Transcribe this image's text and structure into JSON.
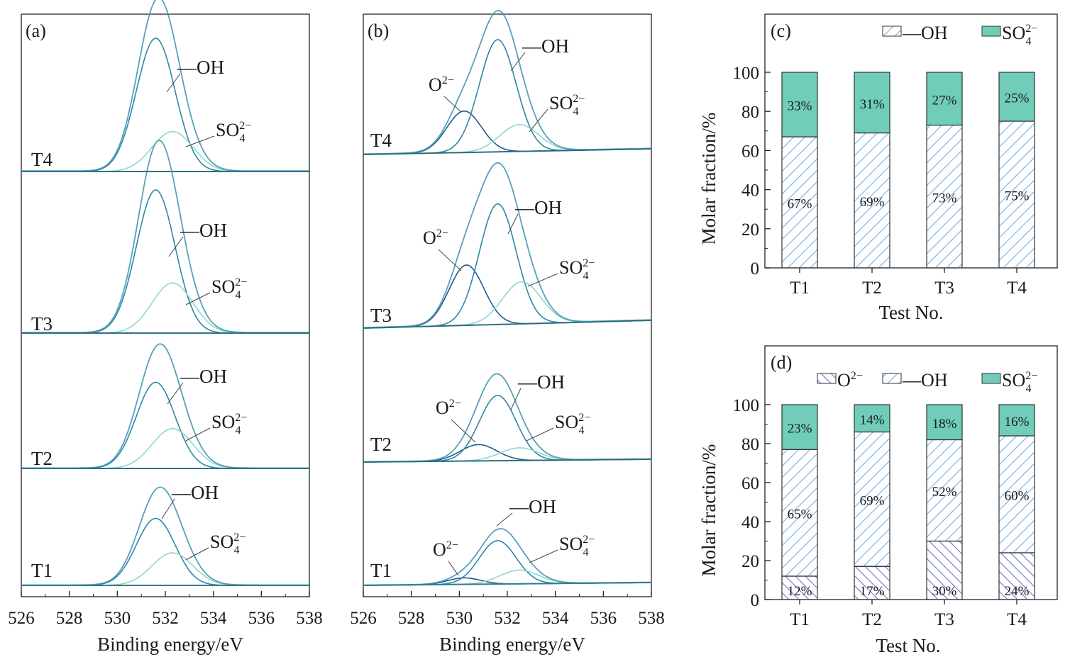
{
  "colors": {
    "envelope": "#3a8fb0",
    "oh": "#2e86a8",
    "so4": "#8fd8c8",
    "o2": "#1f5a8c",
    "baseline": "#2f7d8f",
    "so4_fill": "#6fcdb9",
    "hatch": "#7fb7e6",
    "hatch_o2": "#7a82c9"
  },
  "panels": {
    "a": {
      "tag": "(a)",
      "xlabel": "Binding energy/eV",
      "xticks": [
        "526",
        "528",
        "530",
        "532",
        "534",
        "536",
        "538"
      ],
      "samples": [
        {
          "name": "T4",
          "oh_label": "—OH",
          "so4_label": "SO",
          "so4_sup": "2−",
          "so4_sub": "4"
        },
        {
          "name": "T3",
          "oh_label": "—OH",
          "so4_label": "SO",
          "so4_sup": "2−",
          "so4_sub": "4"
        },
        {
          "name": "T2",
          "oh_label": "—OH",
          "so4_label": "SO",
          "so4_sup": "2−",
          "so4_sub": "4"
        },
        {
          "name": "T1",
          "oh_label": "—OH",
          "so4_label": "SO",
          "so4_sup": "2−",
          "so4_sub": "4"
        }
      ]
    },
    "b": {
      "tag": "(b)",
      "xlabel": "Binding energy/eV",
      "xticks": [
        "526",
        "528",
        "530",
        "532",
        "534",
        "536",
        "538"
      ],
      "samples": [
        {
          "name": "T4",
          "oh_label": "—OH",
          "so4_label": "SO",
          "so4_sup": "2−",
          "so4_sub": "4",
          "o2_label": "O",
          "o2_sup": "2−"
        },
        {
          "name": "T3",
          "oh_label": "—OH",
          "so4_label": "SO",
          "so4_sup": "2−",
          "so4_sub": "4",
          "o2_label": "O",
          "o2_sup": "2−"
        },
        {
          "name": "T2",
          "oh_label": "—OH",
          "so4_label": "SO",
          "so4_sup": "2−",
          "so4_sub": "4",
          "o2_label": "O",
          "o2_sup": "2−"
        },
        {
          "name": "T1",
          "oh_label": "—OH",
          "so4_label": "SO",
          "so4_sup": "2−",
          "so4_sub": "4",
          "o2_label": "O",
          "o2_sup": "2−"
        }
      ]
    },
    "c": {
      "tag": "(c)",
      "xlabel": "Test No.",
      "ylabel": "Molar fraction/%",
      "yticks": [
        "0",
        "20",
        "40",
        "60",
        "80",
        "100"
      ],
      "legend": [
        {
          "key": "oh",
          "label": "—OH"
        },
        {
          "key": "so4",
          "label": "SO",
          "sup": "2−",
          "sub": "4"
        }
      ]
    },
    "d": {
      "tag": "(d)",
      "xlabel": "Test No.",
      "ylabel": "Molar fraction/%",
      "yticks": [
        "0",
        "20",
        "40",
        "60",
        "80",
        "100"
      ],
      "legend": [
        {
          "key": "o2",
          "label": "O",
          "sup": "2−"
        },
        {
          "key": "oh",
          "label": "—OH"
        },
        {
          "key": "so4",
          "label": "SO",
          "sup": "2−",
          "sub": "4"
        }
      ]
    }
  },
  "chart_data": [
    {
      "type": "line",
      "panel": "a",
      "xlabel": "Binding energy/eV",
      "xlim": [
        526,
        538
      ],
      "series": [
        {
          "name": "T4",
          "peaks": {
            "oh": {
              "center": 531.6,
              "fwhm": 1.9,
              "height": 1.0
            },
            "so4": {
              "center": 532.3,
              "fwhm": 2.0,
              "height": 0.3
            }
          }
        },
        {
          "name": "T3",
          "peaks": {
            "oh": {
              "center": 531.6,
              "fwhm": 1.9,
              "height": 1.0
            },
            "so4": {
              "center": 532.3,
              "fwhm": 2.0,
              "height": 0.35
            }
          }
        },
        {
          "name": "T2",
          "peaks": {
            "oh": {
              "center": 531.6,
              "fwhm": 1.9,
              "height": 0.8
            },
            "so4": {
              "center": 532.3,
              "fwhm": 2.0,
              "height": 0.37
            }
          }
        },
        {
          "name": "T1",
          "peaks": {
            "oh": {
              "center": 531.6,
              "fwhm": 1.9,
              "height": 0.7
            },
            "so4": {
              "center": 532.3,
              "fwhm": 2.0,
              "height": 0.34
            }
          }
        }
      ]
    },
    {
      "type": "line",
      "panel": "b",
      "xlabel": "Binding energy/eV",
      "xlim": [
        526,
        538
      ],
      "series": [
        {
          "name": "T4",
          "peaks": {
            "o2": {
              "center": 530.2,
              "fwhm": 1.7,
              "height": 0.34
            },
            "oh": {
              "center": 531.6,
              "fwhm": 1.8,
              "height": 0.92
            },
            "so4": {
              "center": 532.5,
              "fwhm": 1.9,
              "height": 0.22
            }
          }
        },
        {
          "name": "T3",
          "peaks": {
            "o2": {
              "center": 530.3,
              "fwhm": 1.7,
              "height": 0.46
            },
            "oh": {
              "center": 531.6,
              "fwhm": 1.8,
              "height": 0.92
            },
            "so4": {
              "center": 532.6,
              "fwhm": 1.9,
              "height": 0.32
            }
          }
        },
        {
          "name": "T2",
          "peaks": {
            "o2": {
              "center": 530.8,
              "fwhm": 1.8,
              "height": 0.18
            },
            "oh": {
              "center": 531.6,
              "fwhm": 1.8,
              "height": 0.72
            },
            "so4": {
              "center": 532.5,
              "fwhm": 1.9,
              "height": 0.14
            }
          }
        },
        {
          "name": "T1",
          "peaks": {
            "o2": {
              "center": 530.2,
              "fwhm": 1.6,
              "height": 0.09
            },
            "oh": {
              "center": 531.6,
              "fwhm": 1.8,
              "height": 0.6
            },
            "so4": {
              "center": 532.5,
              "fwhm": 1.9,
              "height": 0.19
            }
          }
        }
      ]
    },
    {
      "type": "bar",
      "panel": "c",
      "stacked": true,
      "categories": [
        "T1",
        "T2",
        "T3",
        "T4"
      ],
      "ylim": [
        0,
        100
      ],
      "xlabel": "Test No.",
      "ylabel": "Molar fraction/%",
      "legend": "top-right",
      "series": [
        {
          "name": "—OH",
          "key": "oh",
          "values": [
            67,
            69,
            73,
            75
          ],
          "labels": [
            "67%",
            "69%",
            "73%",
            "75%"
          ]
        },
        {
          "name": "SO42−",
          "key": "so4",
          "values": [
            33,
            31,
            27,
            25
          ],
          "labels": [
            "33%",
            "31%",
            "27%",
            "25%"
          ]
        }
      ]
    },
    {
      "type": "bar",
      "panel": "d",
      "stacked": true,
      "categories": [
        "T1",
        "T2",
        "T3",
        "T4"
      ],
      "ylim": [
        0,
        100
      ],
      "xlabel": "Test No.",
      "ylabel": "Molar fraction/%",
      "legend": "top-right",
      "series": [
        {
          "name": "O2−",
          "key": "o2",
          "values": [
            12,
            17,
            30,
            24
          ],
          "labels": [
            "12%",
            "17%",
            "30%",
            "24%"
          ]
        },
        {
          "name": "—OH",
          "key": "oh",
          "values": [
            65,
            69,
            52,
            60
          ],
          "labels": [
            "65%",
            "69%",
            "52%",
            "60%"
          ]
        },
        {
          "name": "SO42−",
          "key": "so4",
          "values": [
            23,
            14,
            18,
            16
          ],
          "labels": [
            "23%",
            "14%",
            "18%",
            "16%"
          ]
        }
      ]
    }
  ]
}
